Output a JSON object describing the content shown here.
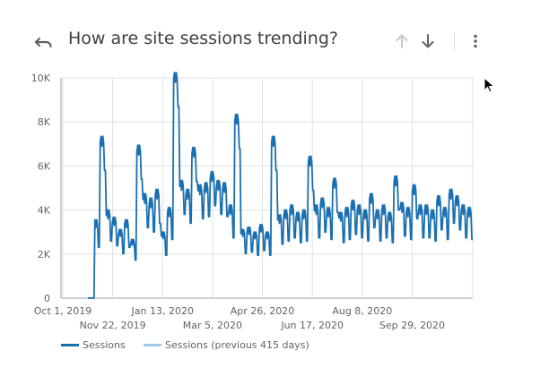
{
  "card": {
    "title": "How are site sessions trending?",
    "icons": {
      "back": "undo-icon",
      "up": "arrow-up-icon",
      "down": "arrow-down-icon",
      "more": "more-vert-icon",
      "cursor": "mouse-pointer-icon"
    }
  },
  "colors": {
    "primary_series": "#1a6fb0",
    "previous_series": "#9ecbee",
    "grid": "#e0e0e0",
    "text": "#3c4043",
    "axis_text": "#5f6368"
  },
  "chart_data": {
    "type": "line",
    "title": "",
    "xlabel": "",
    "ylabel": "",
    "ylim": [
      0,
      10000
    ],
    "y_ticks": [
      "0",
      "2K",
      "4K",
      "6K",
      "8K",
      "10K"
    ],
    "x_ticks_row1": [
      "Oct 1, 2019",
      "Jan 13, 2020",
      "Apr 26, 2020",
      "Aug 8, 2020"
    ],
    "x_ticks_row2": [
      "Nov 22, 2019",
      "Mar 5, 2020",
      "Jun 17, 2020",
      "Sep 29, 2020"
    ],
    "x_start": "Oct 1, 2019",
    "x_end": "Dec 6, 2020",
    "grid": true,
    "legend_position": "bottom",
    "series": [
      {
        "name": "Sessions",
        "weekly_values": [
          0,
          3200,
          6900,
          3600,
          3300,
          2800,
          3200,
          2400,
          6500,
          4300,
          4100,
          4500,
          2700,
          3700,
          9800,
          4900,
          4500,
          6400,
          4700,
          4800,
          5300,
          4900,
          4800,
          3800,
          7900,
          2800,
          2900,
          2700,
          3000,
          2700,
          6900,
          3400,
          3600,
          3800,
          3500,
          3600,
          6000,
          3800,
          4100,
          3700,
          5000,
          3500,
          3700,
          4000,
          3800,
          3600,
          4300,
          3600,
          3800,
          3500,
          5100,
          3900,
          3700,
          4700,
          3800,
          3800,
          3600,
          4200,
          3700,
          4500,
          4200,
          3800,
          3700
        ]
      },
      {
        "name": "Sessions (previous 415 days)",
        "weekly_values": []
      }
    ]
  }
}
